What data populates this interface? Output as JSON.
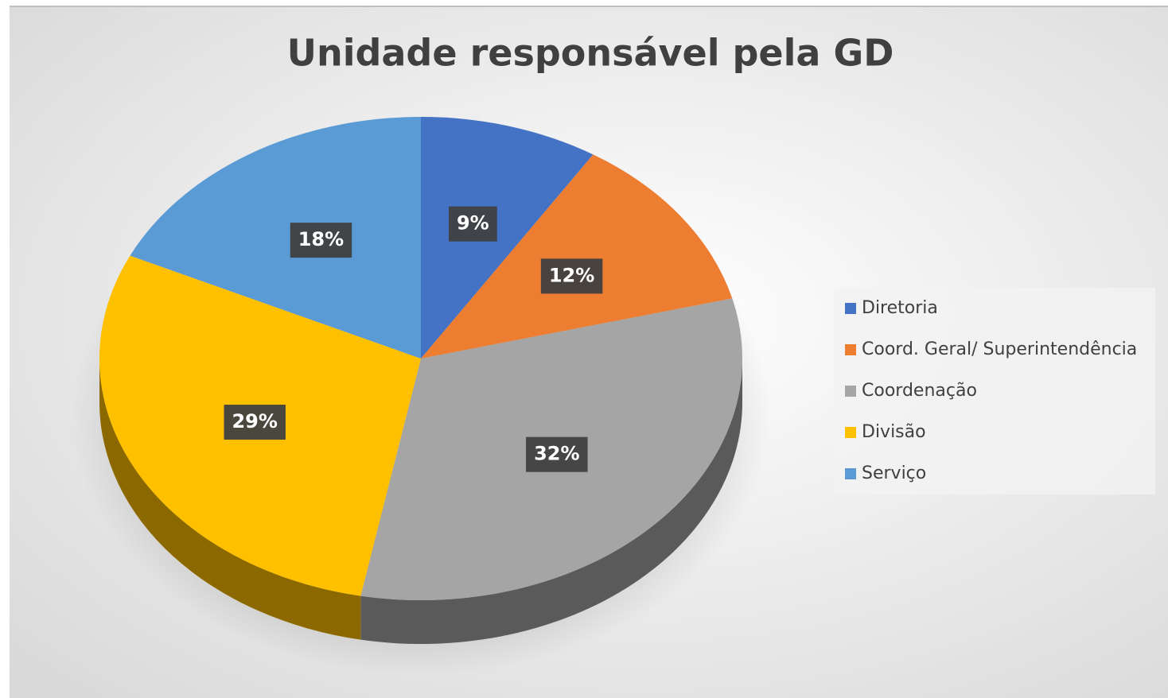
{
  "chart_data": {
    "type": "pie",
    "title": "Unidade responsável pela GD",
    "categories": [
      "Diretoria",
      "Coord. Geral/ Superintendência",
      "Coordenação",
      "Divisão",
      "Serviço"
    ],
    "values": [
      9,
      12,
      32,
      29,
      18
    ],
    "value_labels": [
      "9%",
      "12%",
      "32%",
      "29%",
      "18%"
    ],
    "colors": [
      "#4472c4",
      "#ed7d31",
      "#a5a5a5",
      "#ffc000",
      "#5b9bd5"
    ],
    "legend": "right"
  }
}
